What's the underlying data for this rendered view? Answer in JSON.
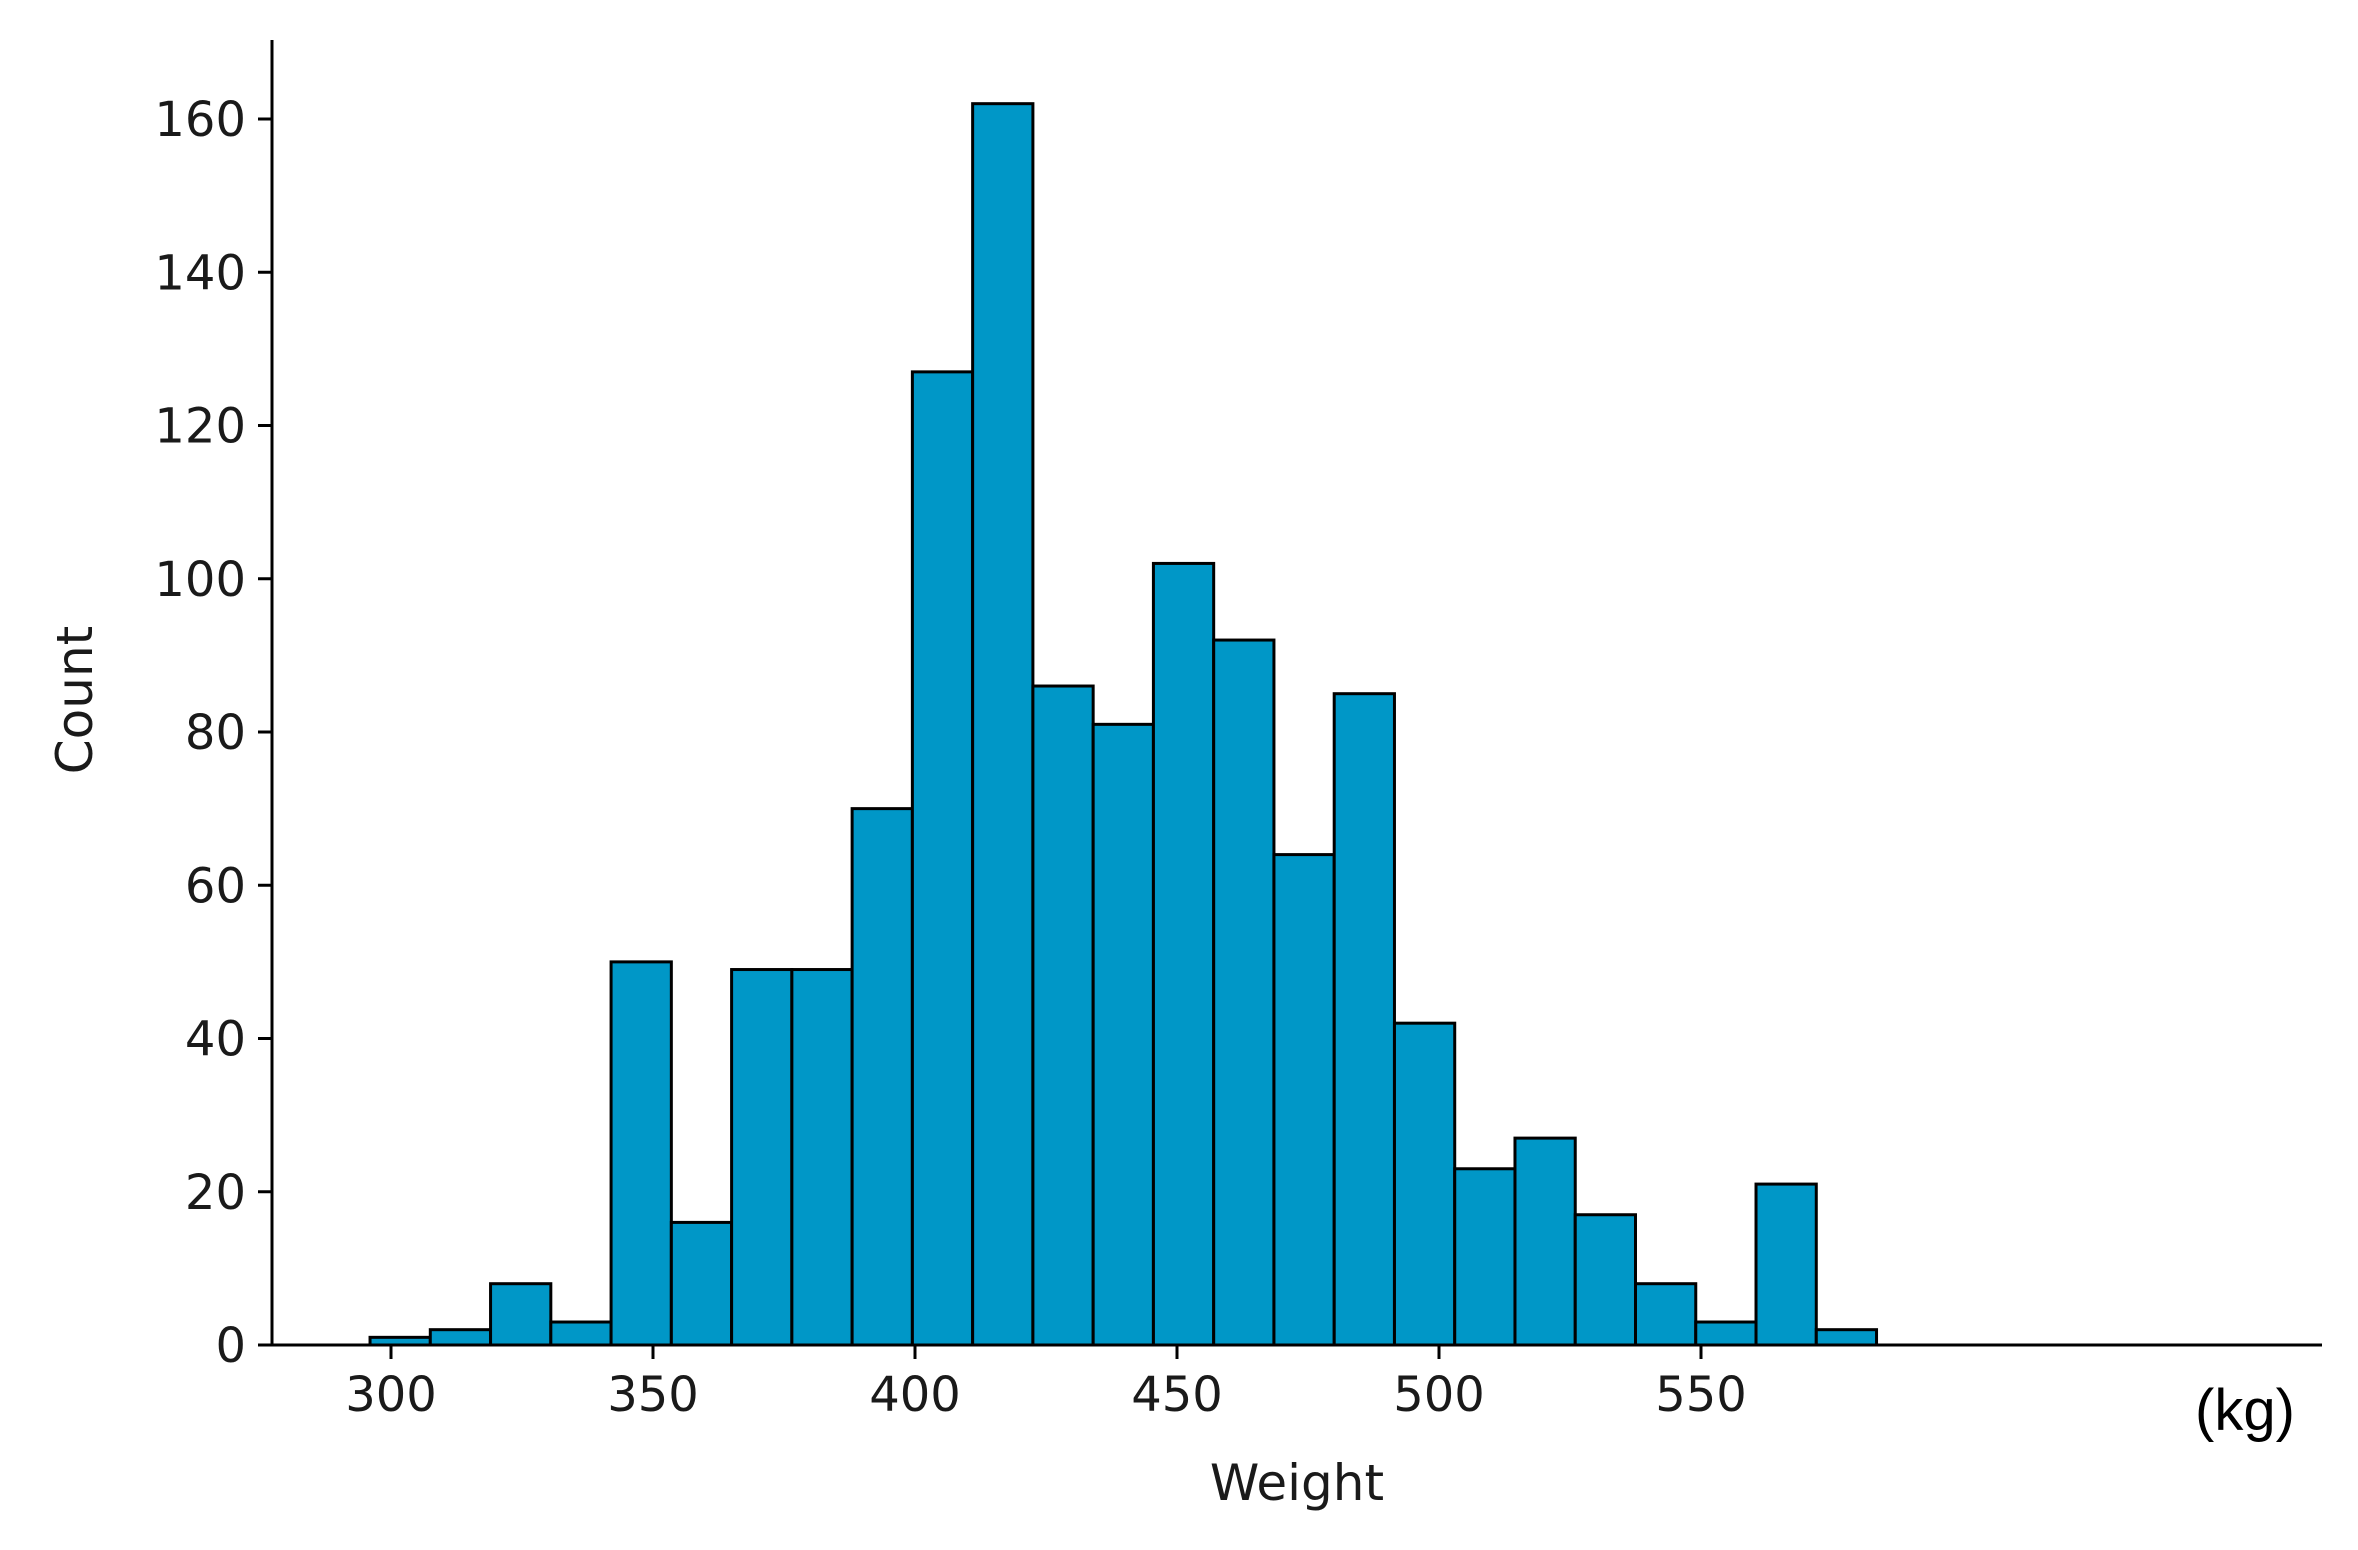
{
  "chart_data": {
    "type": "bar",
    "subtype": "histogram",
    "title": "",
    "xlabel": "Weight",
    "ylabel": "Count",
    "x_unit": "(kg)",
    "xlim": [
      282,
      585
    ],
    "ylim": [
      0,
      170
    ],
    "x_ticks": [
      300,
      350,
      400,
      450,
      500,
      550
    ],
    "y_ticks": [
      0,
      20,
      40,
      60,
      80,
      100,
      120,
      140,
      160
    ],
    "grid": false,
    "legend": "none",
    "bar_color": "#0097c7",
    "edge_color": "#000000",
    "bins": [
      {
        "start": 296.0,
        "end": 307.5,
        "count": 1
      },
      {
        "start": 307.5,
        "end": 319.0,
        "count": 2
      },
      {
        "start": 319.0,
        "end": 330.5,
        "count": 8
      },
      {
        "start": 330.5,
        "end": 342.0,
        "count": 3
      },
      {
        "start": 342.0,
        "end": 353.5,
        "count": 50
      },
      {
        "start": 353.5,
        "end": 365.0,
        "count": 16
      },
      {
        "start": 365.0,
        "end": 376.5,
        "count": 49
      },
      {
        "start": 376.5,
        "end": 388.0,
        "count": 49
      },
      {
        "start": 388.0,
        "end": 399.5,
        "count": 70
      },
      {
        "start": 399.5,
        "end": 411.0,
        "count": 127
      },
      {
        "start": 411.0,
        "end": 422.5,
        "count": 162
      },
      {
        "start": 422.5,
        "end": 434.0,
        "count": 86
      },
      {
        "start": 434.0,
        "end": 445.5,
        "count": 81
      },
      {
        "start": 445.5,
        "end": 457.0,
        "count": 102
      },
      {
        "start": 457.0,
        "end": 468.5,
        "count": 92
      },
      {
        "start": 468.5,
        "end": 480.0,
        "count": 64
      },
      {
        "start": 480.0,
        "end": 491.5,
        "count": 85
      },
      {
        "start": 491.5,
        "end": 503.0,
        "count": 42
      },
      {
        "start": 503.0,
        "end": 514.5,
        "count": 23
      },
      {
        "start": 514.5,
        "end": 526.0,
        "count": 27
      },
      {
        "start": 526.0,
        "end": 537.5,
        "count": 17
      },
      {
        "start": 537.5,
        "end": 549.0,
        "count": 8
      },
      {
        "start": 549.0,
        "end": 560.5,
        "count": 3
      },
      {
        "start": 560.5,
        "end": 572.0,
        "count": 21
      },
      {
        "start": 572.0,
        "end": 583.5,
        "count": 2
      }
    ]
  }
}
